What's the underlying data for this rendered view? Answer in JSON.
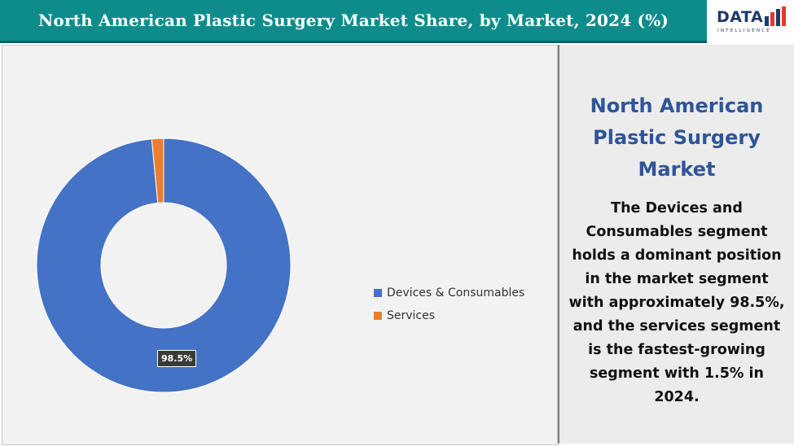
{
  "header": {
    "title": "North American Plastic Surgery Market Share, by Market, 2024 (%)"
  },
  "logo": {
    "text": "DATA",
    "subtext": "INTELLIGENCE"
  },
  "side_panel": {
    "title_lines": [
      "North American",
      "Plastic Surgery",
      "Market"
    ],
    "body_lines": [
      "The Devices and",
      "Consumables segment",
      "holds a dominant position",
      "in the market segment",
      "with approximately 98.5%,",
      "and the services segment",
      "is the fastest-growing",
      "segment with 1.5% in",
      "2024."
    ]
  },
  "chart_data": {
    "type": "pie",
    "title": "",
    "donut": true,
    "categories": [
      "Devices & Consumables",
      "Services"
    ],
    "values": [
      98.5,
      1.5
    ],
    "colors": [
      "#4472c4",
      "#ed7d31"
    ],
    "data_labels": [
      "98.5%",
      ""
    ],
    "legend": "right"
  }
}
